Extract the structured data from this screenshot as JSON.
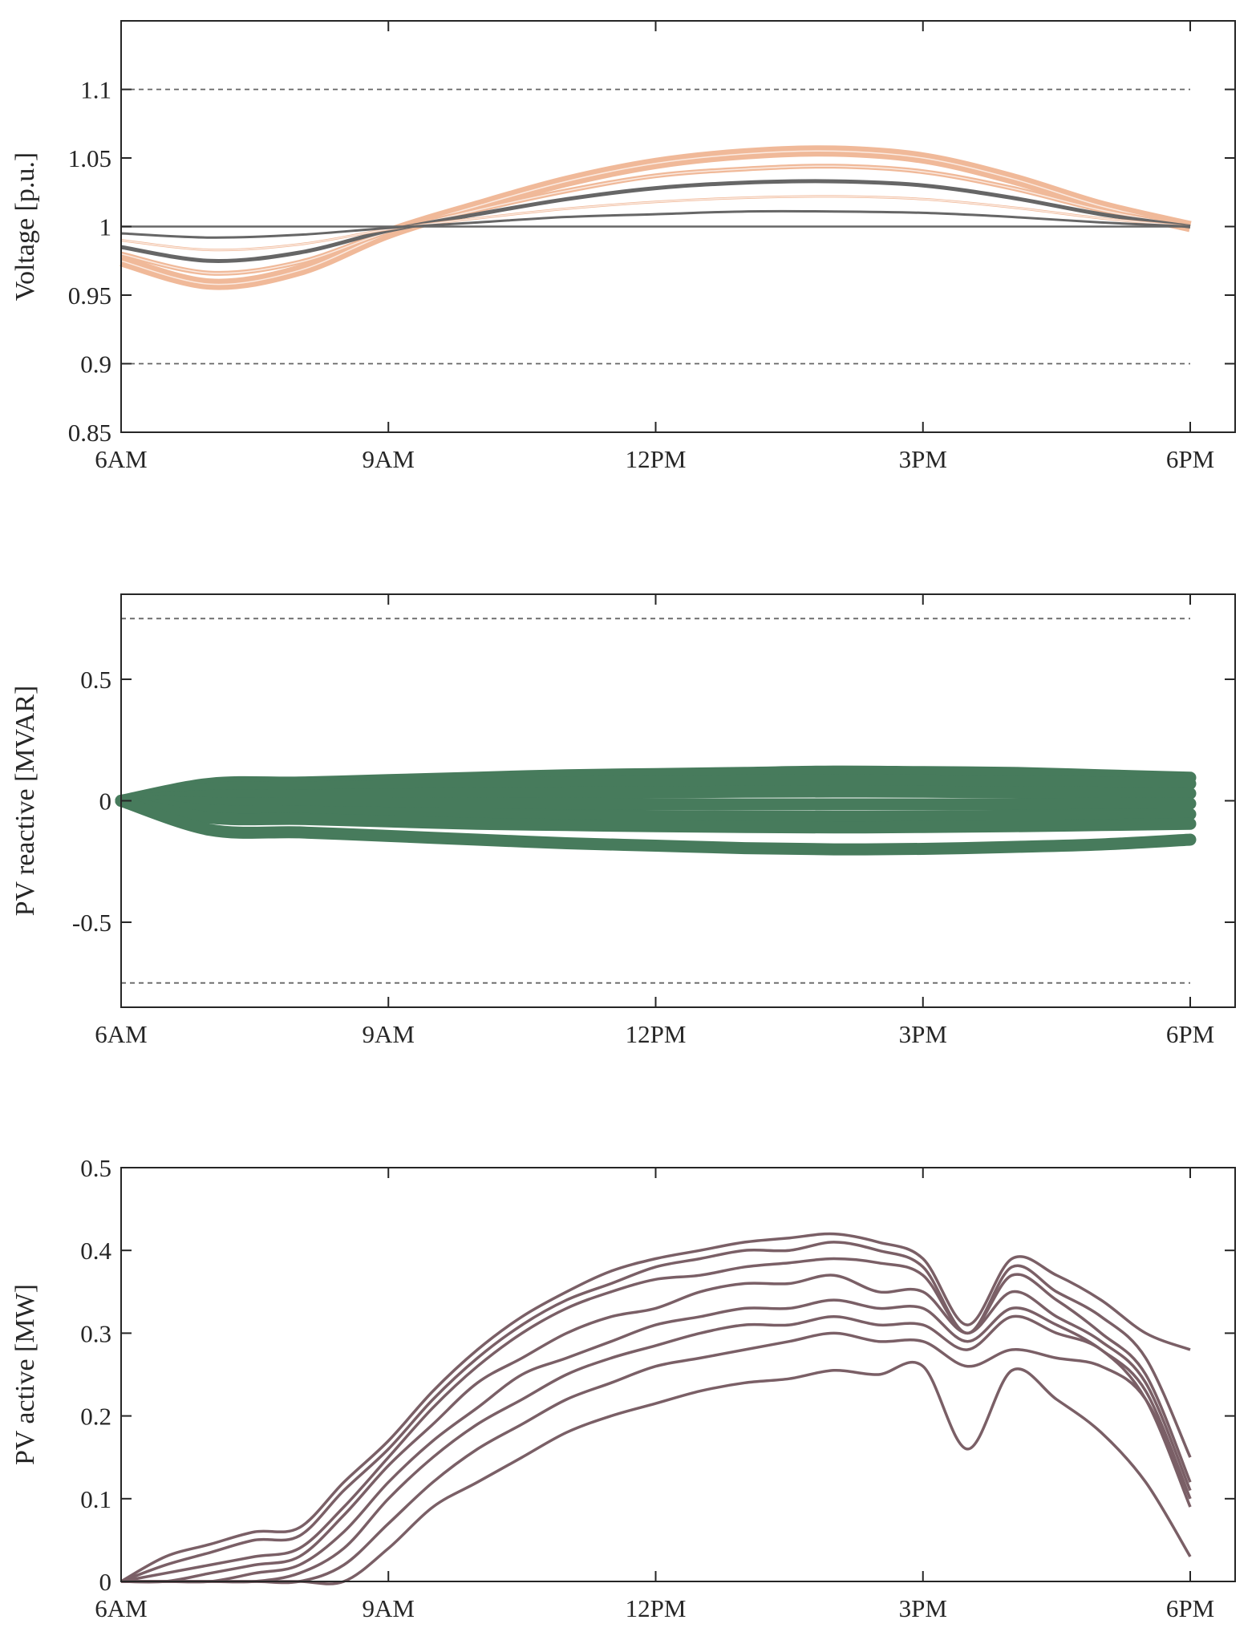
{
  "chart_data": [
    {
      "type": "line",
      "ylabel": "Voltage [p.u.]",
      "xlim": [
        6,
        18.5
      ],
      "ylim": [
        0.85,
        1.15
      ],
      "x_ticks": [
        6,
        9,
        12,
        15,
        18
      ],
      "x_tick_labels": [
        "6AM",
        "9AM",
        "12PM",
        "3PM",
        "6PM"
      ],
      "y_ticks": [
        0.85,
        0.9,
        0.95,
        1,
        1.05,
        1.1
      ],
      "y_tick_labels": [
        "0.85",
        "0.9",
        "0.95",
        "1",
        "1.05",
        "1.1"
      ],
      "reference_lines": [
        0.9,
        1.1
      ],
      "grid": false,
      "x": [
        6,
        7,
        8,
        9,
        10,
        11,
        12,
        13,
        14,
        15,
        16,
        17,
        18
      ],
      "series": [
        {
          "color": "#f0b999",
          "values": [
            0.975,
            0.958,
            0.968,
            0.995,
            1.015,
            1.033,
            1.046,
            1.053,
            1.055,
            1.05,
            1.035,
            1.015,
            1.0
          ]
        },
        {
          "color": "#f0b999",
          "values": [
            0.98,
            0.966,
            0.974,
            0.996,
            1.012,
            1.026,
            1.037,
            1.042,
            1.044,
            1.04,
            1.028,
            1.012,
            1.0
          ]
        },
        {
          "color": "#666666",
          "values": [
            0.985,
            0.975,
            0.981,
            0.997,
            1.009,
            1.02,
            1.028,
            1.032,
            1.033,
            1.03,
            1.021,
            1.009,
            1.0
          ]
        },
        {
          "color": "#f0b999",
          "values": [
            0.99,
            0.983,
            0.987,
            0.998,
            1.006,
            1.013,
            1.018,
            1.021,
            1.022,
            1.02,
            1.014,
            1.006,
            1.0
          ]
        },
        {
          "color": "#666666",
          "values": [
            0.995,
            0.992,
            0.994,
            0.999,
            1.003,
            1.007,
            1.009,
            1.011,
            1.011,
            1.01,
            1.007,
            1.003,
            1.0
          ]
        },
        {
          "color": "#666666",
          "values": [
            1,
            1,
            1,
            1,
            1,
            1,
            1,
            1,
            1,
            1,
            1,
            1,
            1
          ]
        }
      ]
    },
    {
      "type": "line",
      "ylabel": "PV reactive [MVAR]",
      "xlim": [
        6,
        18.5
      ],
      "ylim": [
        -0.85,
        0.85
      ],
      "x_ticks": [
        6,
        9,
        12,
        15,
        18
      ],
      "x_tick_labels": [
        "6AM",
        "9AM",
        "12PM",
        "3PM",
        "6PM"
      ],
      "y_ticks": [
        -0.5,
        0,
        0.5
      ],
      "y_tick_labels": [
        "-0.5",
        "0",
        "0.5"
      ],
      "reference_lines": [
        -0.75,
        0.75
      ],
      "grid": false,
      "x": [
        6,
        7,
        8,
        9,
        10,
        11,
        12,
        13,
        14,
        15,
        16,
        17,
        18
      ],
      "series": [
        {
          "color": "#477b5c",
          "values": [
            0,
            0.07,
            0.075,
            0.085,
            0.095,
            0.105,
            0.11,
            0.115,
            0.12,
            0.118,
            0.115,
            0.105,
            0.095
          ]
        },
        {
          "color": "#477b5c",
          "values": [
            0,
            0.05,
            0.055,
            0.06,
            0.068,
            0.075,
            0.08,
            0.083,
            0.085,
            0.083,
            0.08,
            0.075,
            0.07
          ]
        },
        {
          "color": "#477b5c",
          "values": [
            0,
            0.02,
            0.022,
            0.025,
            0.03,
            0.033,
            0.035,
            0.037,
            0.038,
            0.037,
            0.035,
            0.033,
            0.03
          ]
        },
        {
          "color": "#477b5c",
          "values": [
            0,
            -0.01,
            -0.01,
            -0.01,
            -0.012,
            -0.013,
            -0.014,
            -0.015,
            -0.015,
            -0.015,
            -0.014,
            -0.013,
            -0.012
          ]
        },
        {
          "color": "#477b5c",
          "values": [
            0,
            -0.04,
            -0.045,
            -0.05,
            -0.055,
            -0.06,
            -0.063,
            -0.065,
            -0.066,
            -0.065,
            -0.062,
            -0.058,
            -0.055
          ]
        },
        {
          "color": "#477b5c",
          "values": [
            0,
            -0.07,
            -0.075,
            -0.085,
            -0.095,
            -0.1,
            -0.105,
            -0.108,
            -0.11,
            -0.108,
            -0.105,
            -0.1,
            -0.095
          ]
        },
        {
          "color": "#477b5c",
          "values": [
            0,
            -0.12,
            -0.13,
            -0.145,
            -0.16,
            -0.175,
            -0.185,
            -0.195,
            -0.2,
            -0.198,
            -0.19,
            -0.18,
            -0.16
          ]
        }
      ]
    },
    {
      "type": "line",
      "ylabel": "PV active [MW]",
      "xlim": [
        6,
        18.5
      ],
      "ylim": [
        0,
        0.5
      ],
      "x_ticks": [
        6,
        9,
        12,
        15,
        18
      ],
      "x_tick_labels": [
        "6AM",
        "9AM",
        "12PM",
        "3PM",
        "6PM"
      ],
      "y_ticks": [
        0,
        0.1,
        0.2,
        0.3,
        0.4,
        0.5
      ],
      "y_tick_labels": [
        "0",
        "0.1",
        "0.2",
        "0.3",
        "0.4",
        "0.5"
      ],
      "reference_lines": [],
      "grid": false,
      "x": [
        6,
        6.5,
        7,
        7.5,
        8,
        8.5,
        9,
        9.5,
        10,
        10.5,
        11,
        11.5,
        12,
        12.5,
        13,
        13.5,
        14,
        14.5,
        15,
        15.5,
        16,
        16.5,
        17,
        17.5,
        18
      ],
      "series": [
        {
          "color": "#7a5f66",
          "values": [
            0,
            0.03,
            0.045,
            0.06,
            0.065,
            0.12,
            0.17,
            0.23,
            0.28,
            0.32,
            0.35,
            0.375,
            0.39,
            0.4,
            0.41,
            0.415,
            0.42,
            0.41,
            0.39,
            0.31,
            0.39,
            0.37,
            0.34,
            0.3,
            0.28
          ]
        },
        {
          "color": "#7a5f66",
          "values": [
            0,
            0.02,
            0.035,
            0.05,
            0.055,
            0.11,
            0.16,
            0.22,
            0.27,
            0.31,
            0.34,
            0.36,
            0.38,
            0.39,
            0.4,
            0.4,
            0.41,
            0.4,
            0.38,
            0.3,
            0.38,
            0.35,
            0.32,
            0.27,
            0.15
          ]
        },
        {
          "color": "#7a5f66",
          "values": [
            0,
            0.01,
            0.02,
            0.03,
            0.04,
            0.09,
            0.15,
            0.21,
            0.26,
            0.3,
            0.33,
            0.35,
            0.365,
            0.37,
            0.38,
            0.385,
            0.39,
            0.385,
            0.37,
            0.3,
            0.37,
            0.34,
            0.3,
            0.25,
            0.12
          ]
        },
        {
          "color": "#7a5f66",
          "values": [
            0,
            0,
            0.01,
            0.02,
            0.03,
            0.08,
            0.14,
            0.19,
            0.24,
            0.27,
            0.3,
            0.32,
            0.33,
            0.35,
            0.36,
            0.36,
            0.37,
            0.35,
            0.35,
            0.3,
            0.35,
            0.32,
            0.29,
            0.24,
            0.11
          ]
        },
        {
          "color": "#7a5f66",
          "values": [
            0,
            0,
            0,
            0.01,
            0.02,
            0.06,
            0.12,
            0.17,
            0.21,
            0.25,
            0.27,
            0.29,
            0.31,
            0.32,
            0.33,
            0.33,
            0.34,
            0.33,
            0.33,
            0.29,
            0.33,
            0.31,
            0.28,
            0.23,
            0.1
          ]
        },
        {
          "color": "#7a5f66",
          "values": [
            0,
            0,
            0,
            0,
            0.01,
            0.04,
            0.1,
            0.15,
            0.19,
            0.22,
            0.25,
            0.27,
            0.285,
            0.3,
            0.31,
            0.31,
            0.32,
            0.31,
            0.31,
            0.28,
            0.32,
            0.3,
            0.28,
            0.22,
            0.09
          ]
        },
        {
          "color": "#7a5f66",
          "values": [
            0,
            0,
            0,
            0,
            0,
            0.02,
            0.07,
            0.12,
            0.16,
            0.19,
            0.22,
            0.24,
            0.26,
            0.27,
            0.28,
            0.29,
            0.3,
            0.29,
            0.29,
            0.26,
            0.28,
            0.27,
            0.26,
            0.22,
            0.1
          ]
        },
        {
          "color": "#7a5f66",
          "values": [
            0,
            0,
            0,
            0,
            0,
            0,
            0.04,
            0.09,
            0.12,
            0.15,
            0.18,
            0.2,
            0.215,
            0.23,
            0.24,
            0.245,
            0.255,
            0.25,
            0.26,
            0.16,
            0.255,
            0.22,
            0.18,
            0.12,
            0.03
          ]
        }
      ]
    }
  ]
}
